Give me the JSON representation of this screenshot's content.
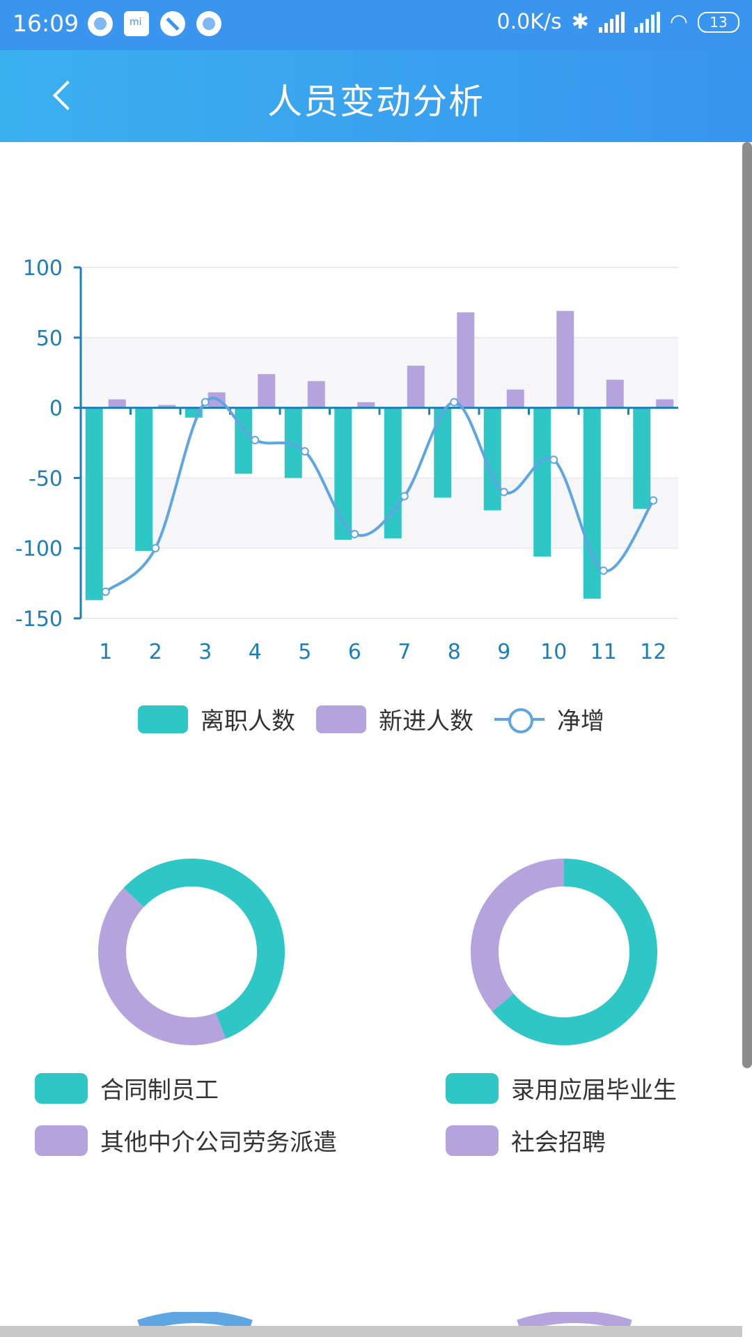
{
  "status_bar": {
    "time": "16:09",
    "network_speed": "0.0K/s",
    "battery": "13",
    "icons": [
      "circle-icon",
      "mi-icon",
      "slash-icon",
      "circle-icon",
      "bluetooth-icon",
      "signal-icon",
      "signal-icon",
      "wifi-icon",
      "battery-icon"
    ]
  },
  "header": {
    "title": "人员变动分析",
    "back_icon": "chevron-left-icon"
  },
  "colors": {
    "teal": "#2fc6c6",
    "purple": "#b5a3de",
    "line": "#5ea6e2",
    "axis": "#1d7fb8",
    "header": "#3895ef"
  },
  "chart_data": [
    {
      "type": "bar",
      "categories": [
        "1",
        "2",
        "3",
        "4",
        "5",
        "6",
        "7",
        "8",
        "9",
        "10",
        "11",
        "12"
      ],
      "series": [
        {
          "name": "离职人数",
          "type": "bar",
          "values": [
            -137,
            -102,
            -7,
            -47,
            -50,
            -94,
            -93,
            -64,
            -73,
            -106,
            -136,
            -72
          ]
        },
        {
          "name": "新进人数",
          "type": "bar",
          "values": [
            6,
            2,
            11,
            24,
            19,
            4,
            30,
            68,
            13,
            69,
            20,
            6
          ]
        },
        {
          "name": "净增",
          "type": "line",
          "smooth": true,
          "values": [
            -131,
            -100,
            4,
            -23,
            -31,
            -90,
            -63,
            4,
            -60,
            -37,
            -116,
            -66
          ]
        }
      ],
      "ylim": [
        -150,
        100
      ],
      "yticks": [
        "100",
        "50",
        "0",
        "-50",
        "-100",
        "-150"
      ],
      "legend": "bottom"
    },
    {
      "type": "pie",
      "donut": true,
      "labels": [
        "合同制员工",
        "其他中介公司劳务派遣"
      ],
      "values": [
        57,
        43
      ]
    },
    {
      "type": "pie",
      "donut": true,
      "labels": [
        "录用应届毕业生",
        "社会招聘"
      ],
      "values": [
        64,
        36
      ]
    }
  ]
}
